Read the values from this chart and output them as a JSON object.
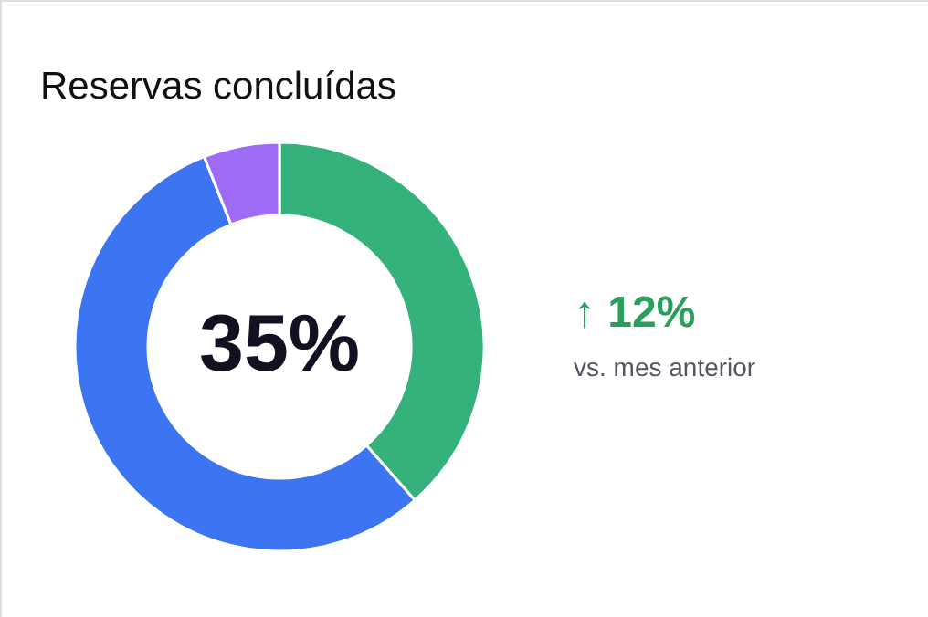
{
  "chart_data": {
    "type": "donut",
    "title": "Reservas concluídas",
    "categories": [
      null,
      null,
      null
    ],
    "values": [
      38.5,
      55.5,
      6
    ],
    "colors": [
      "#35b27b",
      "#3d74f2",
      "#9d6bf6"
    ],
    "annotations": [
      "35%",
      "↑ 12%",
      "vs. mes anterior"
    ]
  }
}
